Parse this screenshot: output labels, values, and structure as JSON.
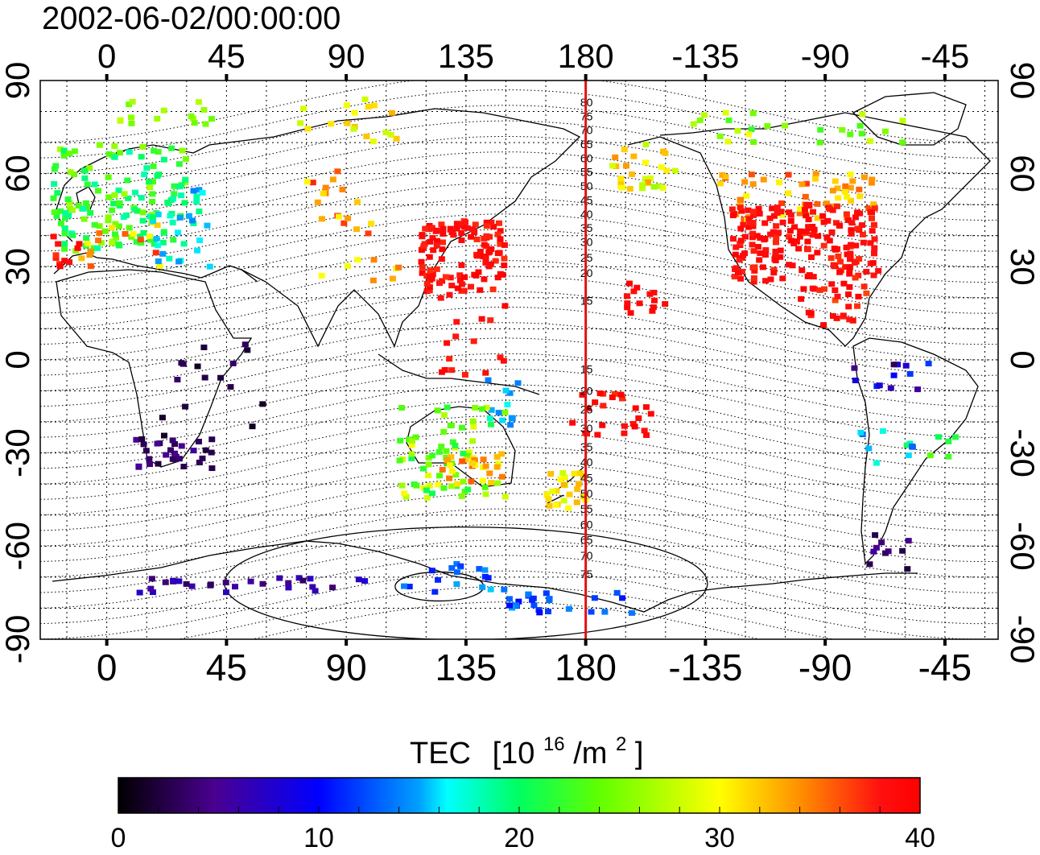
{
  "title": "2002-06-02/00:00:00",
  "map": {
    "lon_labels": [
      "0",
      "45",
      "90",
      "135",
      "180",
      "-135",
      "-90",
      "-45"
    ],
    "lat_labels": [
      "90",
      "60",
      "30",
      "0",
      "-30",
      "-60",
      "-90"
    ],
    "lon_range": [
      -25,
      335
    ],
    "lat_range": [
      -90,
      90
    ],
    "grid_step_lon": 15,
    "grid_step_lat": 10,
    "meridian_lon": 180,
    "meridian_color": "#e01010",
    "contour_labels": [
      "80",
      "75",
      "70",
      "65",
      "60",
      "55",
      "50",
      "45",
      "40",
      "35",
      "30",
      "25",
      "20",
      "15",
      "15",
      "20",
      "25",
      "30",
      "35",
      "40",
      "45",
      "50",
      "55",
      "60",
      "65",
      "70",
      "75"
    ]
  },
  "colorbar": {
    "title": "TEC",
    "unit_base": "[10",
    "unit_exp": "16",
    "unit_mid": "/m",
    "unit_exp2": "2",
    "unit_end": "]",
    "tick_labels": [
      "0",
      "10",
      "20",
      "30",
      "40"
    ],
    "min": 0,
    "max": 40,
    "stops": [
      "#000000",
      "#4a0080",
      "#0000ff",
      "#00ffff",
      "#00ff00",
      "#ffff00",
      "#ff8000",
      "#ff0000"
    ]
  }
}
